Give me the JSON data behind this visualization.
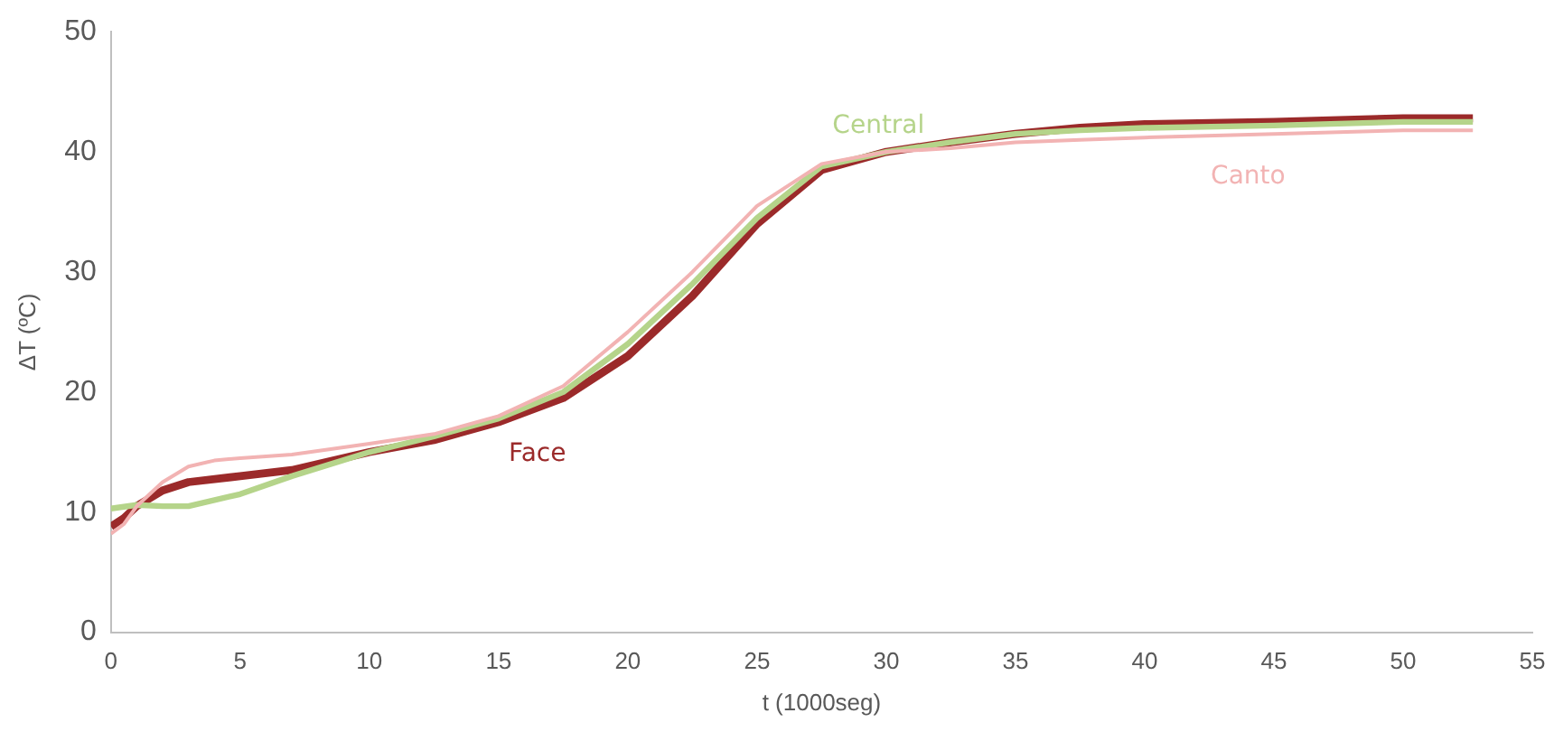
{
  "chart_data": {
    "type": "line",
    "xlabel": "t (1000seg)",
    "ylabel": "ΔT (ºC)",
    "xlim": [
      0,
      55
    ],
    "xticks": [
      0,
      5,
      10,
      15,
      20,
      25,
      30,
      35,
      40,
      45,
      50,
      55
    ],
    "ylim": [
      0,
      50
    ],
    "yticks": [
      0,
      10,
      20,
      30,
      40,
      50
    ],
    "grid": false,
    "legend": false,
    "marker": "none",
    "line_style": "solid",
    "series": [
      {
        "name": "Canto",
        "color": "#f2b3b3",
        "x": [
          0,
          0.5,
          1,
          2,
          3,
          4,
          5,
          7,
          10,
          12.5,
          15,
          17.5,
          20,
          22.5,
          25,
          27.5,
          30,
          32.5,
          35,
          37.5,
          40,
          45,
          50,
          52.7
        ],
        "values": [
          8.2,
          9,
          10.5,
          12.5,
          13.8,
          14.3,
          14.5,
          14.8,
          15.7,
          16.5,
          18,
          20.5,
          25,
          30,
          35.5,
          39,
          40,
          40.3,
          40.8,
          41,
          41.2,
          41.5,
          41.8,
          41.8
        ]
      },
      {
        "name": "Central",
        "color": "#b5d48a",
        "x": [
          0,
          1,
          2,
          3,
          5,
          7,
          10,
          12.5,
          15,
          17.5,
          20,
          22.5,
          25,
          27.5,
          30,
          32.5,
          35,
          37.5,
          40,
          45,
          50,
          52.7
        ],
        "values": [
          10.3,
          10.6,
          10.5,
          10.5,
          11.5,
          13,
          15,
          16.3,
          17.8,
          20,
          24,
          29,
          34.5,
          38.8,
          40,
          40.8,
          41.5,
          41.8,
          42,
          42.2,
          42.5,
          42.5
        ]
      },
      {
        "name": "Face",
        "color": "#9b2a2a",
        "x": [
          0,
          0.5,
          1,
          2,
          3,
          5,
          7,
          10,
          12.5,
          15,
          17.5,
          20,
          22.5,
          25,
          27.5,
          30,
          32.5,
          35,
          37.5,
          40,
          45,
          50,
          52.7
        ],
        "values": [
          8.8,
          9.5,
          10.5,
          11.8,
          12.5,
          13,
          13.5,
          15,
          16,
          17.5,
          19.5,
          23,
          28,
          34,
          38.5,
          40,
          40.8,
          41.5,
          42,
          42.3,
          42.5,
          42.8,
          42.8
        ]
      }
    ]
  }
}
